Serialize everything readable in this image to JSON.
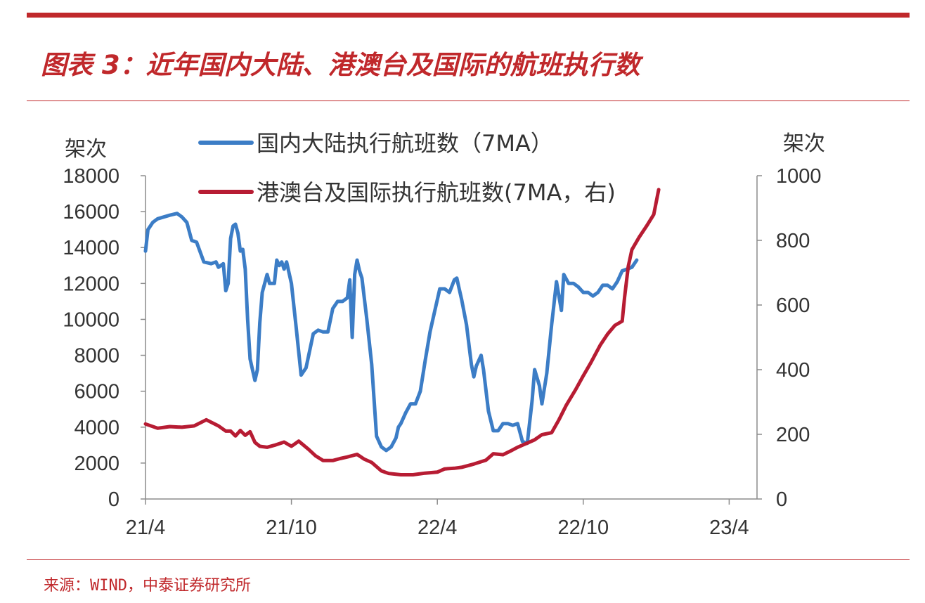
{
  "title": "图表 3：近年国内大陆、港澳台及国际的航班执行数",
  "source": "来源：WIND，中泰证券研究所",
  "colors": {
    "accent": "#c0282b",
    "series_domestic": "#3c7dc6",
    "series_intl": "#b71c33"
  },
  "chart_data": {
    "type": "line",
    "left_unit": "架次",
    "right_unit": "架次",
    "y_left": {
      "min": 0,
      "max": 18000,
      "ticks": [
        "0",
        "2000",
        "4000",
        "6000",
        "8000",
        "10000",
        "12000",
        "14000",
        "16000",
        "18000"
      ]
    },
    "y_right": {
      "min": 0,
      "max": 1000,
      "ticks": [
        "0",
        "200",
        "400",
        "600",
        "800",
        "1000"
      ]
    },
    "x_ticks": [
      "21/4",
      "21/10",
      "22/4",
      "22/10",
      "23/4"
    ],
    "grid": false,
    "legend_position": "top",
    "series": [
      {
        "name": "国内大陆执行航班数（7MA）",
        "axis": "left",
        "points": [
          [
            0,
            13800
          ],
          [
            0.1,
            15000
          ],
          [
            0.3,
            15400
          ],
          [
            0.5,
            15600
          ],
          [
            1,
            15800
          ],
          [
            1.3,
            15900
          ],
          [
            1.5,
            15700
          ],
          [
            1.7,
            15400
          ],
          [
            1.9,
            14400
          ],
          [
            2.1,
            14300
          ],
          [
            2.4,
            13200
          ],
          [
            2.7,
            13100
          ],
          [
            2.9,
            13200
          ],
          [
            3,
            12900
          ],
          [
            3.2,
            13100
          ],
          [
            3.3,
            11600
          ],
          [
            3.4,
            12000
          ],
          [
            3.5,
            14500
          ],
          [
            3.6,
            15200
          ],
          [
            3.7,
            15300
          ],
          [
            3.8,
            14800
          ],
          [
            3.9,
            13800
          ],
          [
            4,
            13900
          ],
          [
            4.1,
            12800
          ],
          [
            4.2,
            10000
          ],
          [
            4.3,
            7800
          ],
          [
            4.4,
            7200
          ],
          [
            4.5,
            6600
          ],
          [
            4.6,
            7200
          ],
          [
            4.7,
            9800
          ],
          [
            4.8,
            11500
          ],
          [
            5,
            12500
          ],
          [
            5.1,
            12000
          ],
          [
            5.3,
            12000
          ],
          [
            5.4,
            13300
          ],
          [
            5.5,
            13000
          ],
          [
            5.6,
            13200
          ],
          [
            5.7,
            12800
          ],
          [
            5.8,
            13200
          ],
          [
            6,
            12000
          ],
          [
            6.2,
            9500
          ],
          [
            6.4,
            6900
          ],
          [
            6.6,
            7300
          ],
          [
            6.9,
            9200
          ],
          [
            7.1,
            9400
          ],
          [
            7.3,
            9300
          ],
          [
            7.5,
            9300
          ],
          [
            7.7,
            10600
          ],
          [
            7.9,
            11000
          ],
          [
            8.1,
            11000
          ],
          [
            8.3,
            11200
          ],
          [
            8.4,
            12200
          ],
          [
            8.5,
            9000
          ],
          [
            8.6,
            12500
          ],
          [
            8.7,
            13300
          ],
          [
            8.8,
            12700
          ],
          [
            8.9,
            12300
          ],
          [
            9.1,
            10000
          ],
          [
            9.3,
            7500
          ],
          [
            9.5,
            3500
          ],
          [
            9.7,
            2900
          ],
          [
            9.9,
            2700
          ],
          [
            10.1,
            2900
          ],
          [
            10.3,
            3400
          ],
          [
            10.4,
            4000
          ],
          [
            10.5,
            4200
          ],
          [
            10.7,
            4800
          ],
          [
            10.9,
            5300
          ],
          [
            11.1,
            5300
          ],
          [
            11.3,
            6000
          ],
          [
            11.5,
            7700
          ],
          [
            11.7,
            9300
          ],
          [
            11.9,
            10500
          ],
          [
            12.1,
            11700
          ],
          [
            12.3,
            11700
          ],
          [
            12.5,
            11500
          ],
          [
            12.7,
            12200
          ],
          [
            12.8,
            12300
          ],
          [
            12.9,
            11700
          ],
          [
            13,
            11100
          ],
          [
            13.2,
            9700
          ],
          [
            13.4,
            7500
          ],
          [
            13.5,
            6800
          ],
          [
            13.6,
            7400
          ],
          [
            13.8,
            8000
          ],
          [
            13.9,
            7200
          ],
          [
            14.1,
            4900
          ],
          [
            14.3,
            3800
          ],
          [
            14.5,
            3800
          ],
          [
            14.7,
            4200
          ],
          [
            14.9,
            4200
          ],
          [
            15.1,
            4100
          ],
          [
            15.3,
            4200
          ],
          [
            15.5,
            3200
          ],
          [
            15.7,
            3100
          ],
          [
            15.9,
            5500
          ],
          [
            16,
            7200
          ],
          [
            16.2,
            6300
          ],
          [
            16.3,
            5300
          ],
          [
            16.5,
            7000
          ],
          [
            16.7,
            9700
          ],
          [
            16.8,
            10900
          ],
          [
            16.9,
            12100
          ],
          [
            17,
            11300
          ],
          [
            17.1,
            10500
          ],
          [
            17.2,
            12500
          ],
          [
            17.4,
            12000
          ],
          [
            17.6,
            12000
          ],
          [
            17.8,
            11800
          ],
          [
            18,
            11500
          ],
          [
            18.2,
            11500
          ],
          [
            18.4,
            11300
          ],
          [
            18.6,
            11500
          ],
          [
            18.8,
            11900
          ],
          [
            19,
            11900
          ],
          [
            19.2,
            11700
          ],
          [
            19.4,
            12100
          ],
          [
            19.6,
            12700
          ],
          [
            19.8,
            12800
          ],
          [
            20,
            12900
          ],
          [
            20.2,
            13300
          ]
        ]
      },
      {
        "name": "港澳台及国际执行航班数(7MA，右)",
        "axis": "right",
        "points": [
          [
            0,
            232
          ],
          [
            0.5,
            219
          ],
          [
            1,
            224
          ],
          [
            1.5,
            222
          ],
          [
            2,
            226
          ],
          [
            2.5,
            245
          ],
          [
            3,
            226
          ],
          [
            3.3,
            210
          ],
          [
            3.5,
            210
          ],
          [
            3.7,
            195
          ],
          [
            3.9,
            212
          ],
          [
            4.1,
            197
          ],
          [
            4.3,
            208
          ],
          [
            4.5,
            175
          ],
          [
            4.7,
            163
          ],
          [
            5,
            160
          ],
          [
            5.3,
            166
          ],
          [
            5.7,
            176
          ],
          [
            6,
            163
          ],
          [
            6.3,
            179
          ],
          [
            6.7,
            154
          ],
          [
            7,
            133
          ],
          [
            7.3,
            119
          ],
          [
            7.7,
            119
          ],
          [
            8,
            125
          ],
          [
            8.3,
            130
          ],
          [
            8.7,
            138
          ],
          [
            9,
            123
          ],
          [
            9.3,
            113
          ],
          [
            9.7,
            87
          ],
          [
            10,
            79
          ],
          [
            10.5,
            75
          ],
          [
            11,
            75
          ],
          [
            11.5,
            80
          ],
          [
            12,
            83
          ],
          [
            12.3,
            93
          ],
          [
            12.7,
            95
          ],
          [
            13,
            98
          ],
          [
            13.5,
            108
          ],
          [
            14,
            120
          ],
          [
            14.3,
            140
          ],
          [
            14.7,
            137
          ],
          [
            15,
            148
          ],
          [
            15.3,
            160
          ],
          [
            15.7,
            173
          ],
          [
            16,
            183
          ],
          [
            16.3,
            199
          ],
          [
            16.7,
            205
          ],
          [
            17,
            245
          ],
          [
            17.3,
            290
          ],
          [
            17.7,
            340
          ],
          [
            18,
            381
          ],
          [
            18.3,
            420
          ],
          [
            18.7,
            476
          ],
          [
            19,
            510
          ],
          [
            19.3,
            537
          ],
          [
            19.6,
            550
          ],
          [
            19.7,
            624
          ],
          [
            19.85,
            719
          ],
          [
            20,
            771
          ],
          [
            20.3,
            810
          ],
          [
            20.6,
            844
          ],
          [
            20.9,
            880
          ],
          [
            21.1,
            957
          ]
        ]
      }
    ]
  }
}
